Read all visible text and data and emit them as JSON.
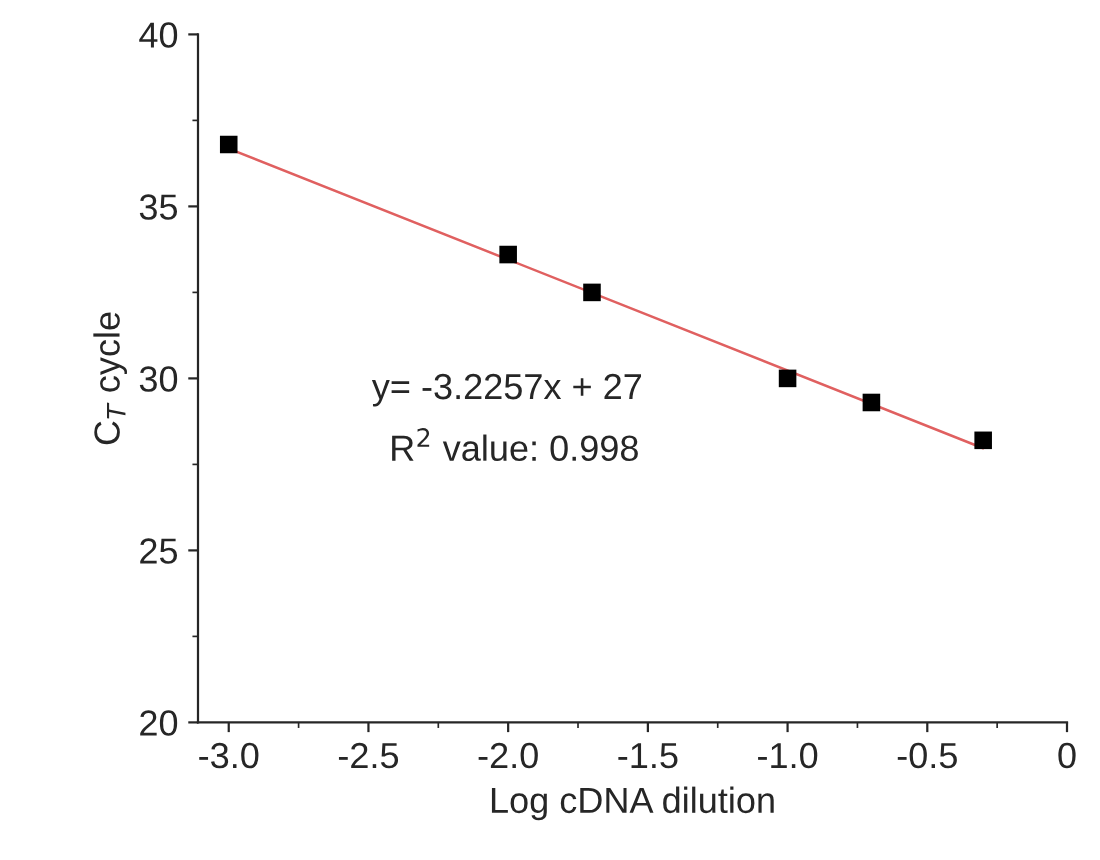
{
  "chart_data": {
    "type": "scatter",
    "xlabel": "Log cDNA dilution",
    "ylabel": "C$_{T}$ cycle",
    "x": [
      -3.0,
      -2.0,
      -1.7,
      -1.0,
      -0.7,
      -0.3
    ],
    "series": [
      {
        "color": "#000000",
        "marker": "square",
        "values": [
          36.8,
          33.6,
          32.5,
          30.0,
          29.3,
          28.2
        ]
      },
      {
        "type": "line",
        "color": "#e06060",
        "x": [
          -3.0,
          -0.3
        ],
        "values": [
          36.68,
          27.97
        ],
        "line_style": "solid"
      }
    ],
    "annotations": [
      "y= -3.2257x + 27",
      "R$^{2}$ value: 0.998"
    ],
    "xlim": [
      -3.11,
      0
    ],
    "ylim": [
      20,
      40
    ],
    "xticks": [
      {
        "value": -3.0,
        "label": "-3.0"
      },
      {
        "value": -2.5,
        "label": "-2.5"
      },
      {
        "value": -2.0,
        "label": "-2.0"
      },
      {
        "value": -1.5,
        "label": "-1.5"
      },
      {
        "value": -1.0,
        "label": "-1.0"
      },
      {
        "value": -0.5,
        "label": "-0.5"
      },
      0
    ],
    "yticks": [
      20,
      25,
      30,
      35,
      40
    ],
    "grid": false,
    "legend": false
  }
}
